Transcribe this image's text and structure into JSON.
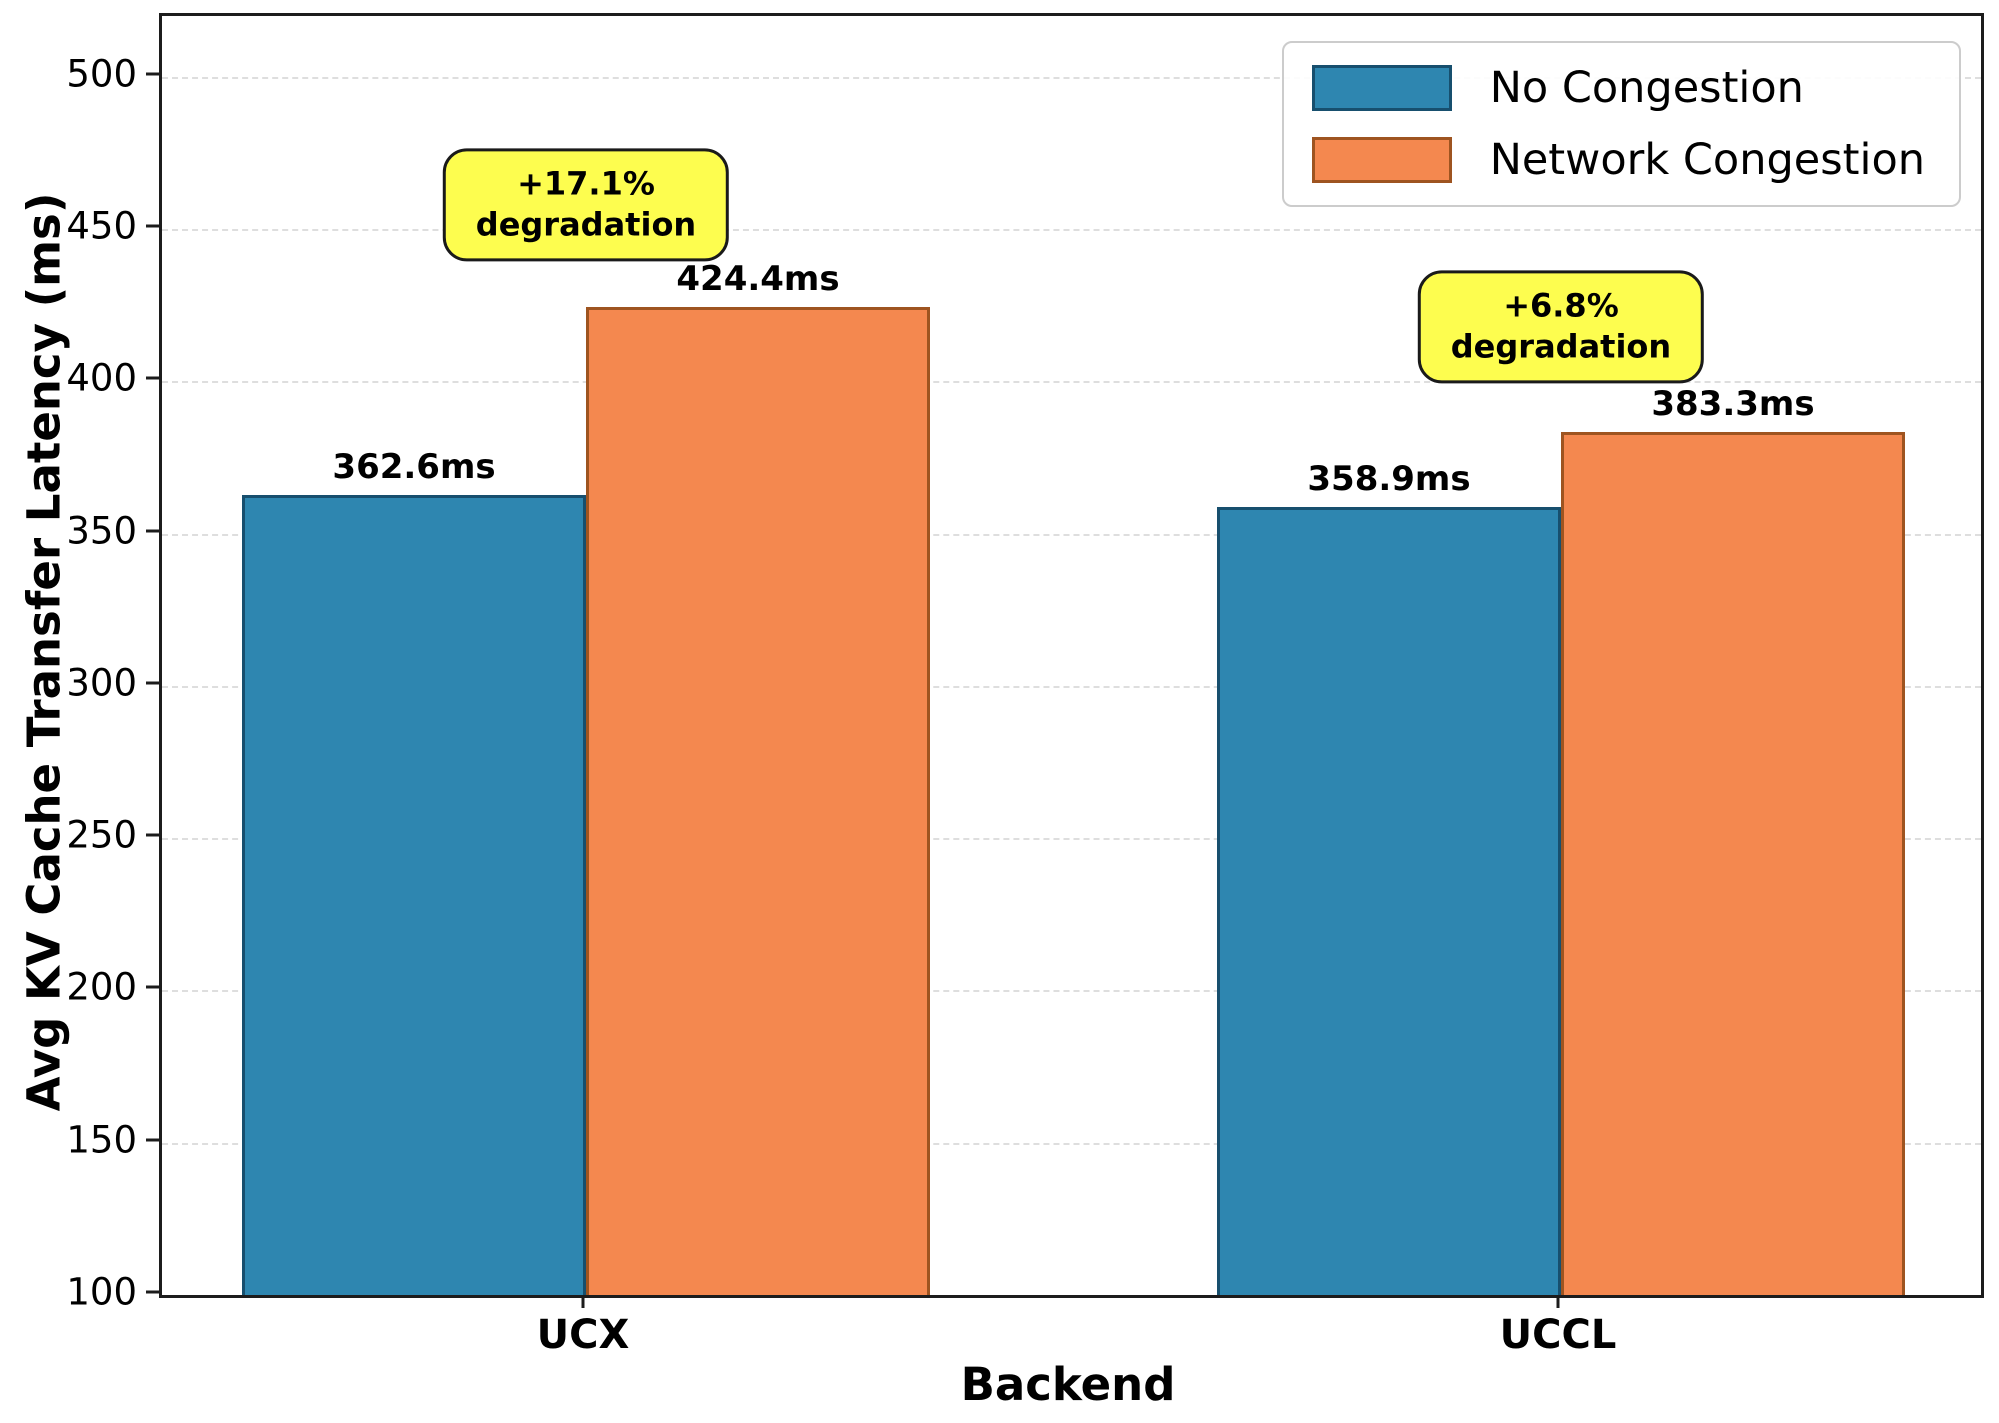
{
  "chart_data": {
    "type": "bar",
    "title": "",
    "xlabel": "Backend",
    "ylabel": "Avg KV Cache Transfer Latency (ms)",
    "categories": [
      "UCX",
      "UCCL"
    ],
    "series": [
      {
        "name": "No Congestion",
        "color": "#2E86B0",
        "edge_color": "#174F6E",
        "values": [
          362.6,
          358.9
        ]
      },
      {
        "name": "Network Congestion",
        "color": "#F4884F",
        "edge_color": "#9E5420",
        "values": [
          424.4,
          383.3
        ]
      }
    ],
    "value_suffix": "ms",
    "value_labels": [
      [
        "362.6ms",
        "358.9ms"
      ],
      [
        "424.4ms",
        "383.3ms"
      ]
    ],
    "ylim": [
      100,
      520
    ],
    "yticks": [
      100,
      150,
      200,
      250,
      300,
      350,
      400,
      450,
      500
    ],
    "grid": "horizontal-dashed",
    "legend": {
      "position": "top-right",
      "entries": [
        "No Congestion",
        "Network Congestion"
      ]
    },
    "annotations": [
      {
        "lines": [
          "+17.1%",
          "degradation"
        ],
        "category_index": 0,
        "y_value": 458,
        "bg": "#FDFD4F"
      },
      {
        "lines": [
          "+6.8%",
          "degradation"
        ],
        "category_index": 1,
        "y_value": 418,
        "bg": "#FDFD4F"
      }
    ]
  }
}
